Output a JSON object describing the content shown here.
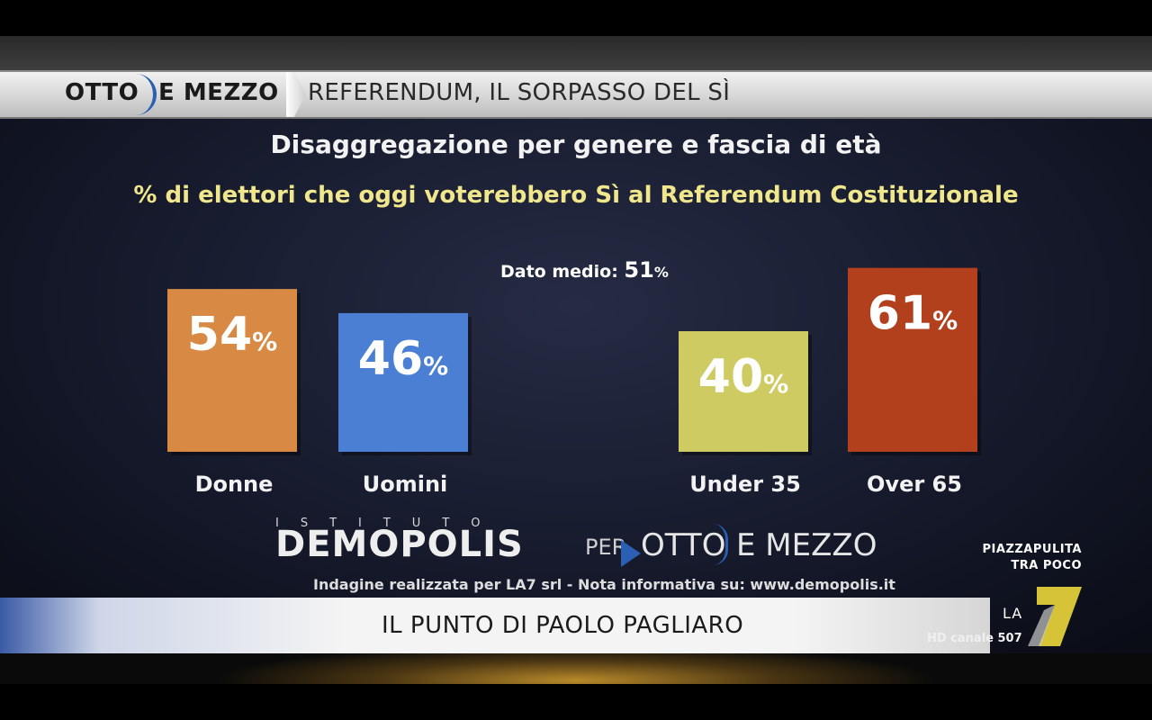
{
  "header": {
    "logo_left": "OTTO",
    "logo_right": "E MEZZO",
    "title": "REFERENDUM, IL SORPASSO DEL SÌ"
  },
  "chart_data": {
    "type": "bar",
    "title": "Disaggregazione per genere e fascia di età",
    "subtitle": "% di elettori che oggi voterebbero Sì al Referendum Costituzionale",
    "categories": [
      "Donne",
      "Uomini",
      "Under 35",
      "Over 65"
    ],
    "values": [
      54,
      46,
      40,
      61
    ],
    "value_suffix": "%",
    "colors": [
      "#d88a45",
      "#4a7fd3",
      "#cfcb63",
      "#b2401d"
    ],
    "average": {
      "label": "Dato medio:",
      "value": "51",
      "suffix": "%"
    },
    "grid": false,
    "legend": "none"
  },
  "source": {
    "istituto": "ISTITUTO",
    "brand": "DEMOPOLIS",
    "per": "PER",
    "brand_otto": "OTTO",
    "brand_mezzo": "E MEZZO",
    "note": "Indagine realizzata per LA7 srl - Nota informativa su: www.demopolis.it"
  },
  "lower_third": {
    "title": "IL PUNTO DI PAOLO PAGLIARO"
  },
  "promo": {
    "line1": "PIAZZAPULITA",
    "line2": "TRA POCO"
  },
  "channel": {
    "logo_text": "LA",
    "hd": "HD canale 507"
  }
}
